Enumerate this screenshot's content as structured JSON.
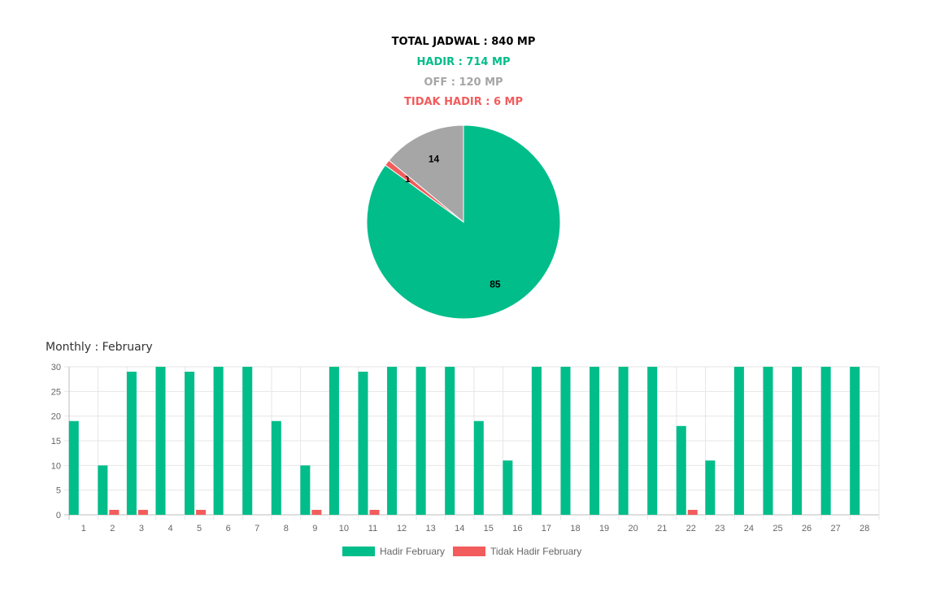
{
  "summary": {
    "total": "TOTAL JADWAL : 840 MP",
    "hadir": "HADIR : 714 MP",
    "off": "OFF : 120 MP",
    "tidak_hadir": "TIDAK HADIR : 6 MP"
  },
  "colors": {
    "hadir": "#00bd8a",
    "off": "#a6a6a6",
    "tidak_hadir": "#f25c5c"
  },
  "monthly_title": "Monthly : February",
  "chart_data": [
    {
      "type": "pie",
      "slices": [
        {
          "label": "85",
          "value": 85,
          "color": "#00bd8a"
        },
        {
          "label": "1",
          "value": 1,
          "color": "#f25c5c"
        },
        {
          "label": "14",
          "value": 14,
          "color": "#a6a6a6"
        }
      ]
    },
    {
      "type": "bar",
      "title": "Monthly : February",
      "categories": [
        "1",
        "2",
        "3",
        "4",
        "5",
        "6",
        "7",
        "8",
        "9",
        "10",
        "11",
        "12",
        "13",
        "14",
        "15",
        "16",
        "17",
        "18",
        "19",
        "20",
        "21",
        "22",
        "23",
        "24",
        "25",
        "26",
        "27",
        "28"
      ],
      "series": [
        {
          "name": "Hadir February",
          "color": "#00bd8a",
          "values": [
            19,
            10,
            29,
            30,
            29,
            30,
            30,
            19,
            10,
            30,
            29,
            30,
            30,
            30,
            19,
            11,
            30,
            30,
            30,
            30,
            30,
            18,
            11,
            30,
            30,
            30,
            30,
            30
          ]
        },
        {
          "name": "Tidak Hadir February",
          "color": "#f25c5c",
          "values": [
            0,
            1,
            1,
            0,
            1,
            0,
            0,
            0,
            1,
            0,
            1,
            0,
            0,
            0,
            0,
            0,
            0,
            0,
            0,
            0,
            0,
            1,
            0,
            0,
            0,
            0,
            0,
            0
          ]
        }
      ],
      "ylim": [
        0,
        30
      ],
      "yticks": [
        "0",
        "5",
        "10",
        "15",
        "20",
        "25",
        "30"
      ],
      "grid": true,
      "legend": "bottom"
    }
  ]
}
